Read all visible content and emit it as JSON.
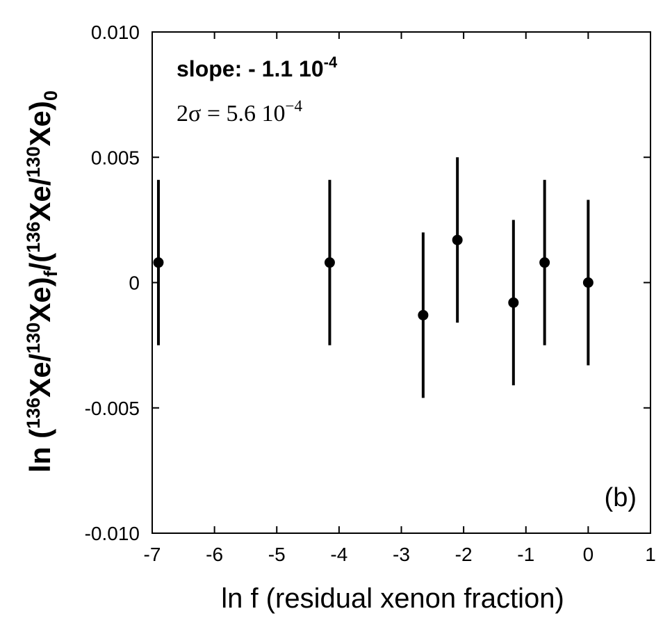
{
  "chart_data": {
    "type": "scatter",
    "xlabel": "ln f (residual xenon fraction)",
    "ylabel": {
      "prefix": "ln (",
      "mass1": "136",
      "el1": "Xe/",
      "mass2": "130",
      "el2": "Xe)",
      "sub_f": "f",
      "mid": "/(",
      "mass3": "136",
      "el3": "Xe/",
      "mass4": "130",
      "el4": "Xe)",
      "sub_0": "0"
    },
    "xlim": [
      -7,
      1
    ],
    "ylim": [
      -0.01,
      0.01
    ],
    "x_ticks": [
      -7,
      -6,
      -5,
      -4,
      -3,
      -2,
      -1,
      0,
      1
    ],
    "x_tick_labels": [
      "-7",
      "-6",
      "-5",
      "-4",
      "-3",
      "-2",
      "-1",
      "0",
      "1"
    ],
    "y_ticks": [
      -0.01,
      -0.005,
      0,
      0.005,
      0.01
    ],
    "y_tick_labels": [
      "-0.010",
      "-0.005",
      "0",
      "0.005",
      "0.010"
    ],
    "points": [
      {
        "x": -6.9,
        "y": 0.0008,
        "err": 0.0033
      },
      {
        "x": -4.15,
        "y": 0.0008,
        "err": 0.0033
      },
      {
        "x": -2.65,
        "y": -0.0013,
        "err": 0.0033
      },
      {
        "x": -2.1,
        "y": 0.0017,
        "err": 0.0033
      },
      {
        "x": -1.2,
        "y": -0.0008,
        "err": 0.0033
      },
      {
        "x": -0.7,
        "y": 0.0008,
        "err": 0.0033
      },
      {
        "x": 0.0,
        "y": 0.0,
        "err": 0.0033
      }
    ],
    "annotations": {
      "slope_prefix": "slope: - 1.1 10",
      "slope_exp": "-4",
      "sigma_prefix": "2σ = 5.6 10",
      "sigma_exp": "−4",
      "panel_label": "(b)"
    },
    "grid": false,
    "legend": "none"
  }
}
